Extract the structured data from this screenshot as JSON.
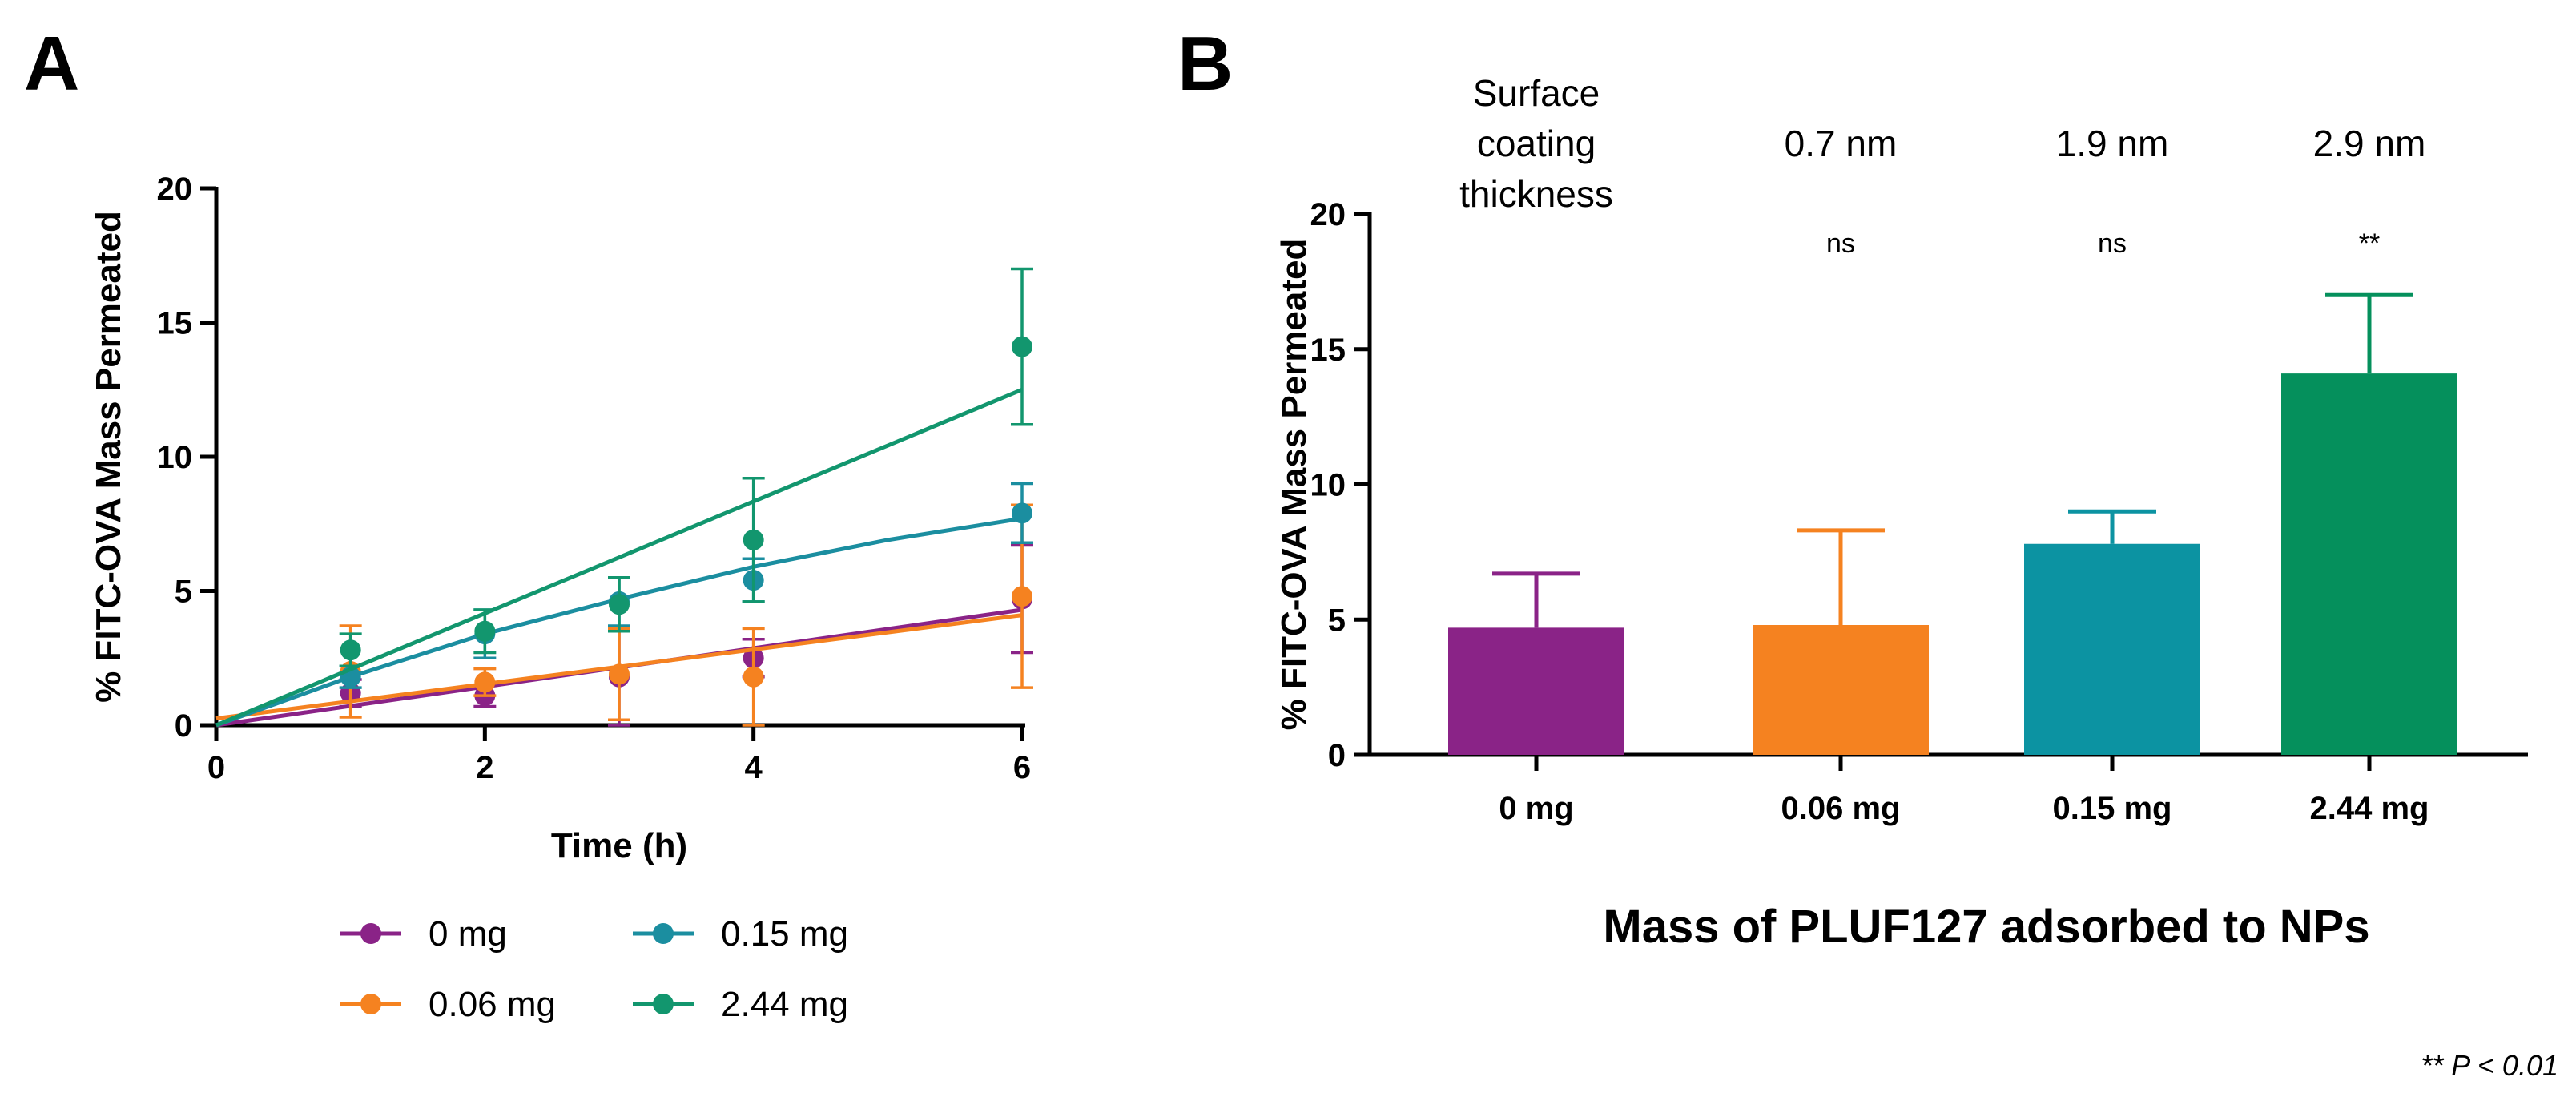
{
  "chart_data": [
    {
      "panel": "A",
      "type": "scatter",
      "xlabel": "Time (h)",
      "ylabel": "% FITC-OVA Mass Permeated",
      "xlim": [
        0,
        6
      ],
      "ylim": [
        0,
        20
      ],
      "xticks": [
        0,
        2,
        4,
        6
      ],
      "yticks": [
        0,
        5,
        10,
        15,
        20
      ],
      "grid": false,
      "legend_position": "bottom",
      "series": [
        {
          "name": "0 mg",
          "color": "#8a2387",
          "x": [
            1,
            2,
            3,
            4,
            6
          ],
          "y": [
            1.2,
            1.1,
            1.8,
            2.5,
            4.7
          ],
          "err": [
            0.5,
            0.4,
            1.8,
            0.7,
            2.0
          ],
          "fit": {
            "kind": "linear",
            "x": [
              0,
              6
            ],
            "y": [
              0,
              4.3
            ]
          }
        },
        {
          "name": "0.06 mg",
          "color": "#f58220",
          "x": [
            1,
            2,
            3,
            4,
            6
          ],
          "y": [
            2.0,
            1.6,
            1.9,
            1.8,
            4.8
          ],
          "err": [
            1.7,
            0.5,
            1.7,
            1.8,
            3.4
          ],
          "fit": {
            "kind": "linear",
            "x": [
              0,
              6
            ],
            "y": [
              0.25,
              4.1
            ]
          }
        },
        {
          "name": "0.15 mg",
          "color": "#1b8ea0",
          "x": [
            1,
            2,
            3,
            4,
            6
          ],
          "y": [
            1.8,
            3.4,
            4.6,
            5.4,
            7.9
          ],
          "err": [
            0.4,
            0.9,
            0.9,
            0.8,
            1.1
          ],
          "fit": {
            "kind": "curve",
            "x": [
              0,
              1,
              2,
              3,
              4,
              5,
              6
            ],
            "y": [
              0,
              1.8,
              3.4,
              4.7,
              5.9,
              6.9,
              7.7
            ]
          }
        },
        {
          "name": "2.44 mg",
          "color": "#12966e",
          "x": [
            1,
            2,
            3,
            4,
            6
          ],
          "y": [
            2.8,
            3.5,
            4.5,
            6.9,
            14.1
          ],
          "err": [
            0.6,
            0.8,
            1.0,
            2.3,
            2.9
          ],
          "fit": {
            "kind": "linear",
            "x": [
              0,
              6
            ],
            "y": [
              0,
              12.5
            ]
          }
        }
      ]
    },
    {
      "panel": "B",
      "type": "bar",
      "title": "Mass of PLUF127 adsorbed to NPs",
      "ylabel": "% FITC-OVA Mass Permeated",
      "ylim": [
        0,
        20
      ],
      "yticks": [
        0,
        5,
        10,
        15,
        20
      ],
      "categories": [
        "0 mg",
        "0.06 mg",
        "0.15 mg",
        "2.44 mg"
      ],
      "values": [
        4.7,
        4.8,
        7.8,
        14.1
      ],
      "errors": [
        2.0,
        3.5,
        1.2,
        2.9
      ],
      "colors": [
        "#8a2387",
        "#f58220",
        "#0c93a2",
        "#05905c"
      ],
      "thickness_header": [
        "Surface",
        "coating",
        "thickness"
      ],
      "thickness": [
        "",
        "0.7 nm",
        "1.9 nm",
        "2.9 nm"
      ],
      "significance": [
        "",
        "ns",
        "ns",
        "**"
      ],
      "footnote": "** P < 0.01"
    }
  ],
  "panel_labels": {
    "a": "A",
    "b": "B"
  }
}
